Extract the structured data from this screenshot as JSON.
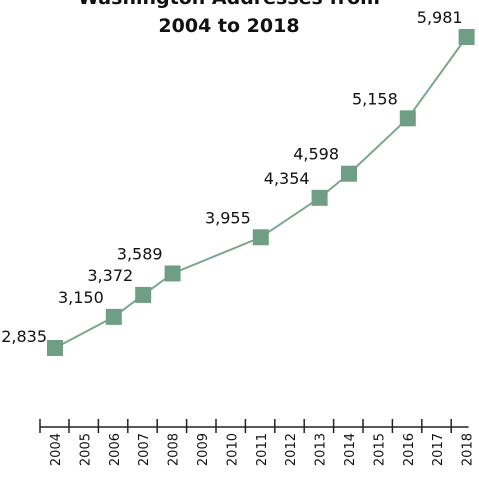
{
  "chart_data": {
    "type": "line",
    "title_lines": [
      "Washington Addresses from",
      "2004 to 2018"
    ],
    "x": [
      "2004",
      "2005",
      "2006",
      "2007",
      "2008",
      "2009",
      "2010",
      "2011",
      "2012",
      "2013",
      "2014",
      "2015",
      "2016",
      "2017",
      "2018"
    ],
    "series": [
      {
        "points": [
          {
            "x": "2004",
            "y": 2835,
            "label": "2,835"
          },
          {
            "x": "2006",
            "y": 3150,
            "label": "3,150"
          },
          {
            "x": "2007",
            "y": 3372,
            "label": "3,372"
          },
          {
            "x": "2008",
            "y": 3589,
            "label": "3,589"
          },
          {
            "x": "2011",
            "y": 3955,
            "label": "3,955"
          },
          {
            "x": "2013",
            "y": 4354,
            "label": "4,354"
          },
          {
            "x": "2014",
            "y": 4598,
            "label": "4,598"
          },
          {
            "x": "2016",
            "y": 5158,
            "label": "5,158"
          },
          {
            "x": "2018",
            "y": 5981,
            "label": "5,981"
          }
        ]
      }
    ],
    "xlabel": "",
    "ylabel": "",
    "grid": false,
    "legend": "none",
    "colors": {
      "line": "#7aa88f",
      "marker": "#6f9e84",
      "axis": "#222222",
      "text": "#111111"
    }
  }
}
